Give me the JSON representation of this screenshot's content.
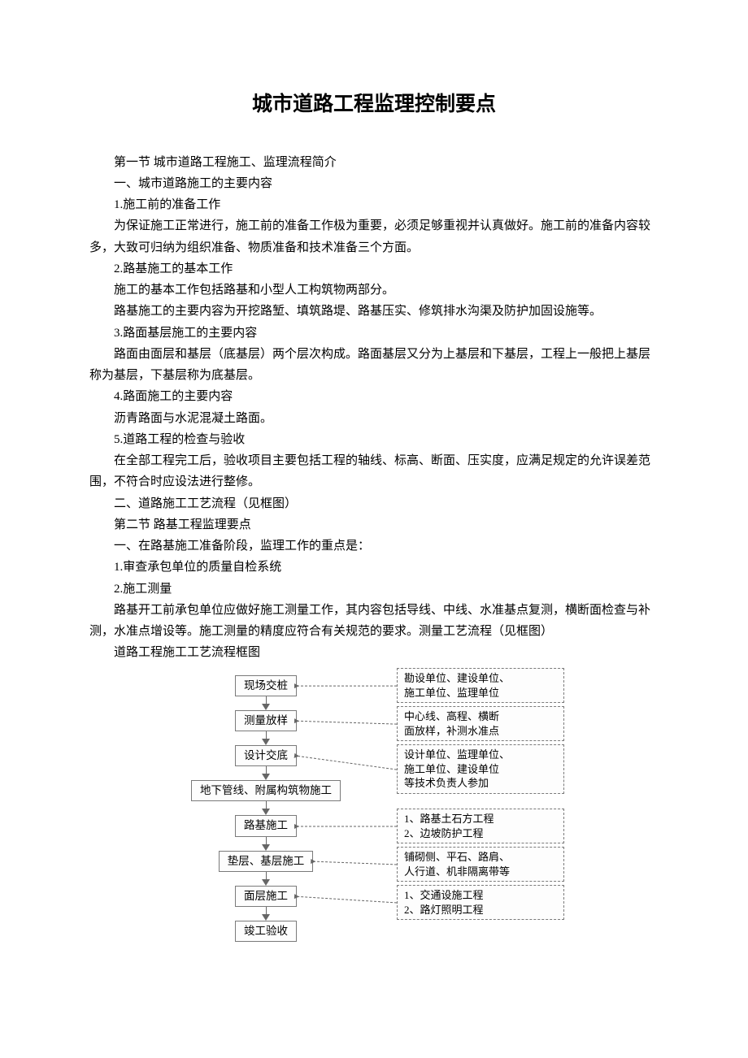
{
  "title": "城市道路工程监理控制要点",
  "paragraphs": {
    "p1": "第一节 城市道路工程施工、监理流程简介",
    "p2": "一、城市道路施工的主要内容",
    "p3": "1.施工前的准备工作",
    "p4": "为保证施工正常进行，施工前的准备工作极为重要，必须足够重视并认真做好。施工前的准备内容较多，大致可归纳为组织准备、物质准备和技术准备三个方面。",
    "p5": "2.路基施工的基本工作",
    "p6": "施工的基本工作包括路基和小型人工构筑物两部分。",
    "p7": "路基施工的主要内容为开挖路堑、填筑路堤、路基压实、修筑排水沟渠及防护加固设施等。",
    "p8": "3.路面基层施工的主要内容",
    "p9": "路面由面层和基层（底基层）两个层次构成。路面基层又分为上基层和下基层，工程上一般把上基层称为基层，下基层称为底基层。",
    "p10": "4.路面施工的主要内容",
    "p11": "沥青路面与水泥混凝土路面。",
    "p12": "5.道路工程的检查与验收",
    "p13": "在全部工程完工后，验收项目主要包括工程的轴线、标高、断面、压实度，应满足规定的允许误差范围，不符合时应设法进行整修。",
    "p14": "二、道路施工工艺流程（见框图）",
    "p15": "第二节 路基工程监理要点",
    "p16": "一、在路基施工准备阶段，监理工作的重点是：",
    "p17": "1.审查承包单位的质量自检系统",
    "p18": "2.施工测量",
    "p19": "路基开工前承包单位应做好施工测量工作，其内容包括导线、中线、水准基点复测，横断面检查与补测，水准点增设等。施工测量的精度应符合有关规范的要求。测量工艺流程（见框图）",
    "p20": "道路工程施工工艺流程框图"
  },
  "flowchart": {
    "type": "flowchart",
    "left_nodes": [
      "现场交桩",
      "测量放样",
      "设计交底",
      "地下管线、附属构筑物施工",
      "路基施工",
      "垫层、基层施工",
      "面层施工",
      "竣工验收"
    ],
    "right_nodes": [
      "勘设单位、建设单位、\n施工单位、监理单位",
      "中心线、高程、横断\n面放样，补测水准点",
      "设计单位、监理单位、\n施工单位、建设单位\n等技术负责人参加",
      "1、路基土石方工程\n2、边坡防护工程",
      "铺砌侧、平石、路肩、\n人行道、机非隔离带等",
      "1、交通设施工程\n2、路灯照明工程"
    ],
    "box_border_color": "#7a7a7a",
    "arrow_color": "#666666",
    "background_color": "#ffffff",
    "font_size_box": 13.5,
    "font_size_rbox": 13,
    "right_map": [
      0,
      1,
      2,
      null,
      3,
      4,
      5,
      null
    ]
  }
}
